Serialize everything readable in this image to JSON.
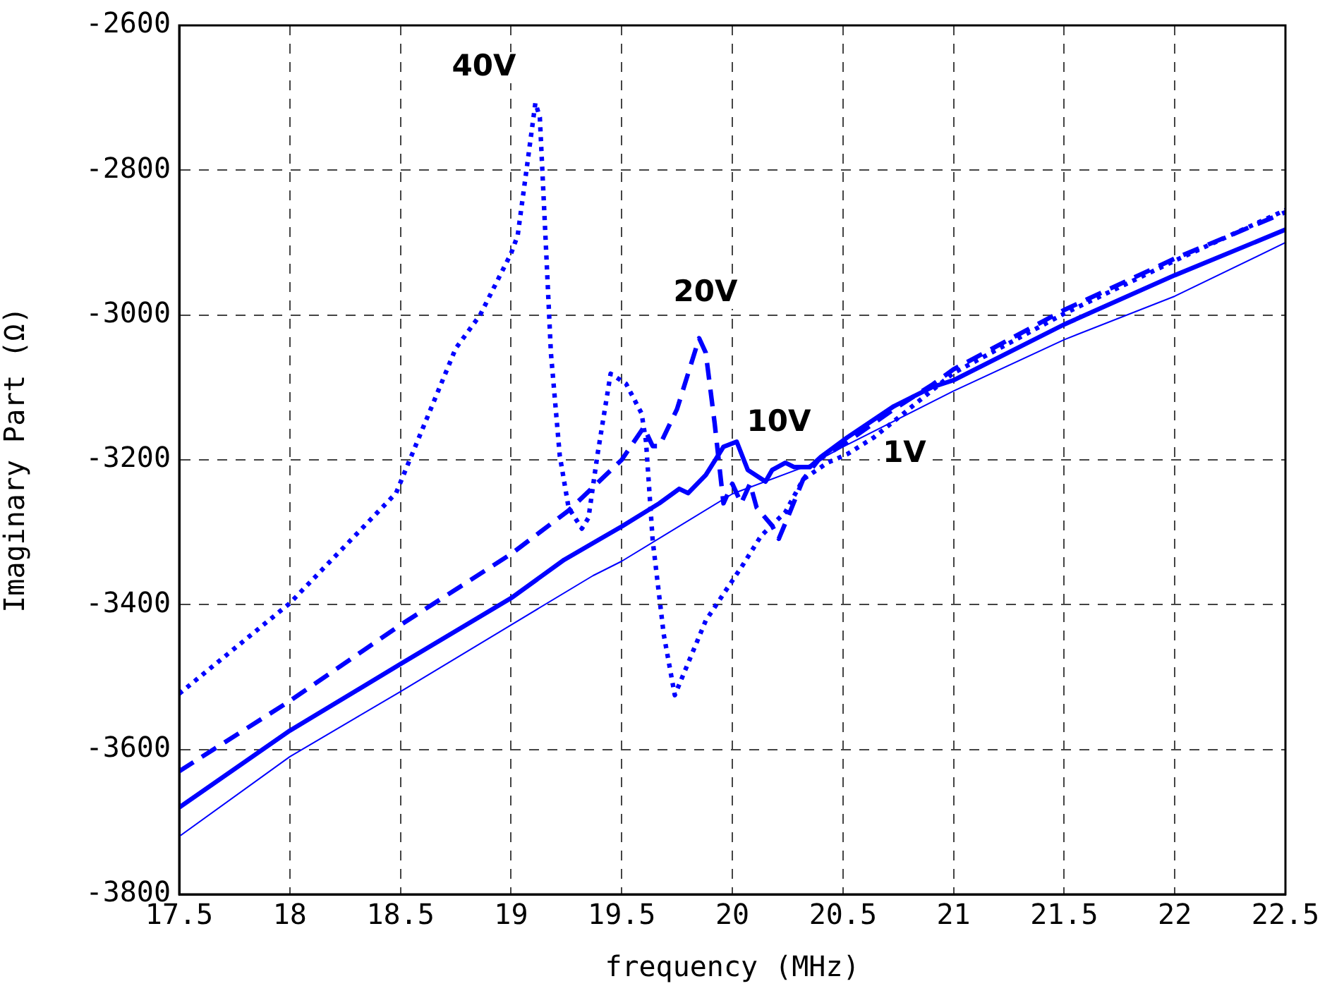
{
  "chart_data": {
    "type": "line",
    "xlabel": "frequency (MHz)",
    "ylabel": "Imaginary Part (Ω)",
    "xlim": [
      17.5,
      22.5
    ],
    "xticks": [
      {
        "value": 17.5,
        "label": "17.5"
      },
      18,
      {
        "value": 18.5,
        "label": "18.5"
      },
      19,
      {
        "value": 19.5,
        "label": "19.5"
      },
      20,
      {
        "value": 20.5,
        "label": "20.5"
      },
      21,
      {
        "value": 21.5,
        "label": "21.5"
      },
      22,
      {
        "value": 22.5,
        "label": "22.5"
      }
    ],
    "ylim": [
      -3800,
      -2600
    ],
    "yticks": [
      -3800,
      -3600,
      -3400,
      -3200,
      -3000,
      -2800,
      -2600
    ],
    "grid": true,
    "legend": false,
    "series": [
      {
        "name": "1V",
        "color": "#0000ff",
        "line_style": "solid",
        "x": [
          17.5,
          18,
          18.5,
          19,
          19.37,
          19.5,
          20,
          20.35,
          20.5,
          21,
          21.5,
          22,
          22.5
        ],
        "values": [
          -3720,
          -3610,
          -3520,
          -3428,
          -3360,
          -3340,
          -3247,
          -3207,
          -3182,
          -3105,
          -3034,
          -2974,
          -2900
        ]
      },
      {
        "name": "10V",
        "color": "#0000ff",
        "line_style": "solid",
        "x": [
          17.5,
          18,
          18.5,
          19,
          19.24,
          19.5,
          19.67,
          19.76,
          19.8,
          19.88,
          19.96,
          20.02,
          20.07,
          20.15,
          20.18,
          20.24,
          20.28,
          20.35,
          20.4,
          20.52,
          20.73,
          20.9,
          21,
          21.5,
          22,
          22.5
        ],
        "values": [
          -3680,
          -3574,
          -3482,
          -3391,
          -3338,
          -3292,
          -3260,
          -3240,
          -3246,
          -3221,
          -3182,
          -3175,
          -3214,
          -3230,
          -3214,
          -3204,
          -3210,
          -3210,
          -3196,
          -3169,
          -3126,
          -3100,
          -3090,
          -3013,
          -2945,
          -2882
        ]
      },
      {
        "name": "20V",
        "color": "#0000ff",
        "line_style": "dashed",
        "x": [
          17.5,
          18,
          18.5,
          19,
          19.26,
          19.5,
          19.6,
          19.64,
          19.67,
          19.75,
          19.85,
          19.88,
          19.92,
          19.96,
          20,
          20.04,
          20.08,
          20.11,
          20.18,
          20.21,
          20.25,
          20.32,
          20.39,
          20.52,
          20.73,
          20.9,
          21,
          21.5,
          22,
          22.5
        ],
        "values": [
          -3630,
          -3533,
          -3428,
          -3330,
          -3270,
          -3200,
          -3155,
          -3181,
          -3181,
          -3130,
          -3032,
          -3052,
          -3149,
          -3260,
          -3233,
          -3260,
          -3233,
          -3266,
          -3291,
          -3309,
          -3280,
          -3227,
          -3200,
          -3175,
          -3130,
          -3097,
          -3075,
          -2993,
          -2922,
          -2858
        ]
      },
      {
        "name": "40V",
        "color": "#0000ff",
        "line_style": "dotted",
        "x": [
          17.5,
          18,
          18.48,
          18.75,
          18.86,
          19,
          19.03,
          19.07,
          19.11,
          19.13,
          19.16,
          19.18,
          19.22,
          19.26,
          19.32,
          19.35,
          19.39,
          19.45,
          19.52,
          19.59,
          19.61,
          19.64,
          19.69,
          19.74,
          19.88,
          20.05,
          20.13,
          20.24,
          20.32,
          20.43,
          20.52,
          20.64,
          21,
          21.5,
          22,
          22.5
        ],
        "values": [
          -3523,
          -3398,
          -3246,
          -3046,
          -3000,
          -2915,
          -2890,
          -2799,
          -2707,
          -2727,
          -2921,
          -3052,
          -3194,
          -3266,
          -3295,
          -3280,
          -3194,
          -3081,
          -3095,
          -3136,
          -3175,
          -3311,
          -3441,
          -3525,
          -3422,
          -3344,
          -3305,
          -3272,
          -3227,
          -3204,
          -3192,
          -3169,
          -3080,
          -2998,
          -2925,
          -2855
        ]
      }
    ]
  }
}
